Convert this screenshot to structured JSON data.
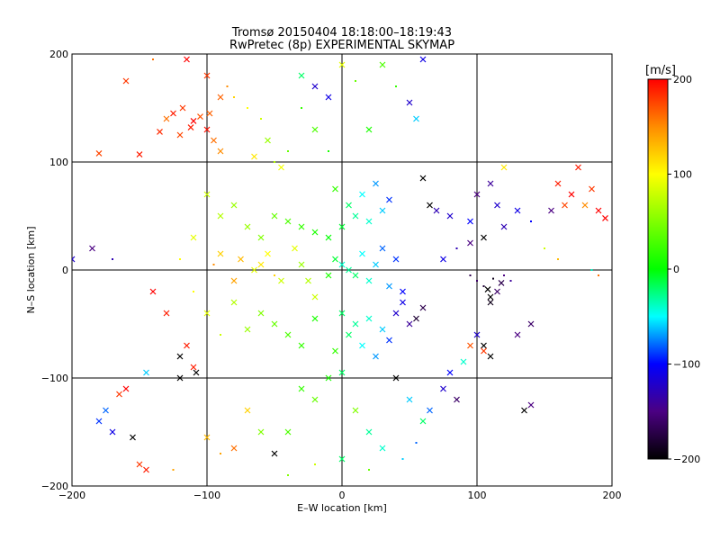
{
  "chart_data": {
    "type": "scatter",
    "title": "Tromsø 20150404 18:18:00–18:19:43",
    "subtitle": "RwPretec (8p) EXPERIMENTAL SKYMAP",
    "xlabel": "E–W location [km]",
    "ylabel": "N–S location [km]",
    "xlim": [
      -200,
      200
    ],
    "ylim": [
      -200,
      200
    ],
    "x_ticks": [
      -200,
      -100,
      0,
      100,
      200
    ],
    "y_ticks": [
      -200,
      -100,
      0,
      100,
      200
    ],
    "grid": true,
    "colorbar": {
      "unit_label": "[m/s]",
      "range": [
        -200,
        200
      ],
      "ticks": [
        200,
        100,
        0,
        -100,
        -200
      ],
      "colormap": [
        "#000000",
        "#4b0082",
        "#0000ff",
        "#00ffff",
        "#00ff00",
        "#ffff00",
        "#ff8c00",
        "#ff0000"
      ]
    },
    "markers": {
      "small": "dot",
      "large": "x"
    },
    "points": [
      [
        -130,
        140,
        160,
        "x"
      ],
      [
        -125,
        145,
        190,
        "x"
      ],
      [
        -118,
        150,
        180,
        "x"
      ],
      [
        -110,
        138,
        200,
        "x"
      ],
      [
        -105,
        142,
        170,
        "x"
      ],
      [
        -100,
        130,
        195,
        "x"
      ],
      [
        -95,
        120,
        160,
        "x"
      ],
      [
        -90,
        110,
        150,
        "x"
      ],
      [
        -135,
        128,
        185,
        "x"
      ],
      [
        -120,
        125,
        175,
        "x"
      ],
      [
        -112,
        132,
        190,
        "x"
      ],
      [
        -98,
        145,
        165,
        "x"
      ],
      [
        -80,
        160,
        120,
        "."
      ],
      [
        -70,
        150,
        100,
        "."
      ],
      [
        -60,
        140,
        80,
        "."
      ],
      [
        -55,
        120,
        60,
        "x"
      ],
      [
        -50,
        100,
        70,
        "."
      ],
      [
        -40,
        110,
        40,
        "."
      ],
      [
        -30,
        150,
        20,
        "."
      ],
      [
        -20,
        130,
        30,
        "x"
      ],
      [
        -10,
        110,
        10,
        "."
      ],
      [
        -45,
        95,
        95,
        "x"
      ],
      [
        -65,
        105,
        110,
        "x"
      ],
      [
        -150,
        107,
        190,
        "x"
      ],
      [
        -180,
        108,
        175,
        "x"
      ],
      [
        -160,
        175,
        180,
        "x"
      ],
      [
        -140,
        195,
        160,
        "."
      ],
      [
        -115,
        195,
        200,
        "x"
      ],
      [
        -100,
        180,
        180,
        "x"
      ],
      [
        -90,
        160,
        165,
        "x"
      ],
      [
        -85,
        170,
        150,
        "."
      ],
      [
        -30,
        180,
        -20,
        "x"
      ],
      [
        -20,
        170,
        -120,
        "x"
      ],
      [
        -10,
        160,
        -110,
        "x"
      ],
      [
        0,
        190,
        90,
        "x"
      ],
      [
        10,
        175,
        40,
        "."
      ],
      [
        30,
        190,
        30,
        "x"
      ],
      [
        60,
        195,
        -110,
        "x"
      ],
      [
        50,
        155,
        -120,
        "x"
      ],
      [
        40,
        170,
        20,
        "."
      ],
      [
        20,
        130,
        10,
        "x"
      ],
      [
        55,
        140,
        -60,
        "x"
      ],
      [
        -200,
        10,
        -120,
        "x"
      ],
      [
        -185,
        20,
        -150,
        "x"
      ],
      [
        -170,
        10,
        -130,
        "."
      ],
      [
        60,
        85,
        -200,
        "x"
      ],
      [
        65,
        60,
        -200,
        "x"
      ],
      [
        70,
        55,
        -130,
        "x"
      ],
      [
        80,
        50,
        -120,
        "x"
      ],
      [
        95,
        45,
        -100,
        "x"
      ],
      [
        100,
        70,
        -150,
        "x"
      ],
      [
        110,
        80,
        -140,
        "x"
      ],
      [
        115,
        60,
        -120,
        "x"
      ],
      [
        130,
        55,
        -110,
        "x"
      ],
      [
        140,
        45,
        -100,
        "."
      ],
      [
        120,
        40,
        -130,
        "x"
      ],
      [
        105,
        30,
        -200,
        "x"
      ],
      [
        95,
        25,
        -150,
        "x"
      ],
      [
        85,
        20,
        -130,
        "."
      ],
      [
        75,
        10,
        -110,
        "x"
      ],
      [
        100,
        -10,
        -160,
        "."
      ],
      [
        105,
        -15,
        -180,
        "."
      ],
      [
        110,
        -25,
        -200,
        "x"
      ],
      [
        115,
        -20,
        -160,
        "x"
      ],
      [
        120,
        -5,
        -150,
        "."
      ],
      [
        125,
        -10,
        -140,
        "."
      ],
      [
        95,
        -5,
        -170,
        "."
      ],
      [
        112,
        -8,
        -190,
        "."
      ],
      [
        108,
        -18,
        -200,
        "x"
      ],
      [
        118,
        -12,
        -170,
        "x"
      ],
      [
        130,
        -60,
        -150,
        "x"
      ],
      [
        140,
        -50,
        -160,
        "x"
      ],
      [
        135,
        -130,
        -200,
        "x"
      ],
      [
        140,
        -125,
        -150,
        "x"
      ],
      [
        105,
        -70,
        -200,
        "x"
      ],
      [
        110,
        -80,
        -200,
        "x"
      ],
      [
        100,
        -60,
        -120,
        "x"
      ],
      [
        95,
        -70,
        170,
        "x"
      ],
      [
        105,
        -75,
        180,
        "x"
      ],
      [
        110,
        -30,
        -190,
        "x"
      ],
      [
        160,
        80,
        190,
        "x"
      ],
      [
        170,
        70,
        200,
        "x"
      ],
      [
        180,
        60,
        150,
        "x"
      ],
      [
        190,
        55,
        200,
        "x"
      ],
      [
        175,
        95,
        190,
        "x"
      ],
      [
        185,
        75,
        180,
        "x"
      ],
      [
        195,
        48,
        200,
        "x"
      ],
      [
        155,
        55,
        -150,
        "x"
      ],
      [
        165,
        60,
        175,
        "x"
      ],
      [
        120,
        95,
        110,
        "x"
      ],
      [
        150,
        20,
        80,
        "."
      ],
      [
        160,
        10,
        130,
        "."
      ],
      [
        185,
        0,
        -40,
        "."
      ],
      [
        190,
        -5,
        160,
        "."
      ],
      [
        -110,
        -90,
        190,
        "x"
      ],
      [
        -108,
        -95,
        -200,
        "x"
      ],
      [
        -120,
        -80,
        -200,
        "x"
      ],
      [
        -115,
        -70,
        190,
        "x"
      ],
      [
        -130,
        -40,
        190,
        "x"
      ],
      [
        -140,
        -20,
        200,
        "x"
      ],
      [
        -160,
        -110,
        200,
        "x"
      ],
      [
        -165,
        -115,
        180,
        "x"
      ],
      [
        -145,
        -95,
        -60,
        "x"
      ],
      [
        -175,
        -130,
        -80,
        "x"
      ],
      [
        -170,
        -150,
        -110,
        "x"
      ],
      [
        -180,
        -140,
        -90,
        "x"
      ],
      [
        -155,
        -155,
        -200,
        "x"
      ],
      [
        -150,
        -180,
        180,
        "x"
      ],
      [
        -145,
        -185,
        190,
        "x"
      ],
      [
        -125,
        -185,
        140,
        "."
      ],
      [
        -120,
        -100,
        -200,
        "x"
      ],
      [
        -70,
        -130,
        120,
        "x"
      ],
      [
        -60,
        -150,
        50,
        "x"
      ],
      [
        -40,
        -150,
        30,
        "x"
      ],
      [
        -30,
        -110,
        20,
        "x"
      ],
      [
        -20,
        -120,
        40,
        "x"
      ],
      [
        -10,
        -100,
        10,
        "x"
      ],
      [
        0,
        -95,
        -20,
        "x"
      ],
      [
        10,
        -130,
        50,
        "x"
      ],
      [
        20,
        -150,
        -30,
        "x"
      ],
      [
        30,
        -165,
        -40,
        "x"
      ],
      [
        50,
        -120,
        -60,
        "x"
      ],
      [
        60,
        -140,
        -20,
        "x"
      ],
      [
        40,
        -100,
        -200,
        "x"
      ],
      [
        80,
        -95,
        -100,
        "x"
      ],
      [
        75,
        -110,
        -120,
        "x"
      ],
      [
        65,
        -130,
        -80,
        "x"
      ],
      [
        90,
        -85,
        -40,
        "x"
      ],
      [
        85,
        -120,
        -160,
        "x"
      ],
      [
        55,
        -160,
        -80,
        "."
      ],
      [
        45,
        -175,
        -60,
        "."
      ],
      [
        -50,
        -170,
        -200,
        "x"
      ],
      [
        -40,
        -190,
        50,
        "."
      ],
      [
        -20,
        -180,
        80,
        "."
      ],
      [
        0,
        -175,
        -20,
        "x"
      ],
      [
        20,
        -185,
        40,
        "."
      ],
      [
        -80,
        -165,
        160,
        "x"
      ],
      [
        -90,
        -170,
        140,
        "."
      ],
      [
        -100,
        -155,
        130,
        "x"
      ],
      [
        -55,
        15,
        100,
        "x"
      ],
      [
        -60,
        5,
        110,
        "x"
      ],
      [
        -65,
        0,
        90,
        "x"
      ],
      [
        -50,
        -5,
        120,
        "."
      ],
      [
        -45,
        -10,
        80,
        "x"
      ],
      [
        -75,
        10,
        130,
        "x"
      ],
      [
        -80,
        -10,
        140,
        "x"
      ],
      [
        -95,
        5,
        150,
        "."
      ],
      [
        -90,
        15,
        120,
        "x"
      ],
      [
        -35,
        20,
        90,
        "x"
      ],
      [
        -30,
        5,
        60,
        "x"
      ],
      [
        -25,
        -10,
        70,
        "x"
      ],
      [
        -20,
        -25,
        80,
        "x"
      ],
      [
        -70,
        40,
        60,
        "x"
      ],
      [
        -60,
        30,
        50,
        "x"
      ],
      [
        -50,
        50,
        40,
        "x"
      ],
      [
        -40,
        45,
        30,
        "x"
      ],
      [
        -30,
        40,
        20,
        "x"
      ],
      [
        -20,
        35,
        10,
        "x"
      ],
      [
        -10,
        30,
        0,
        "x"
      ],
      [
        -80,
        60,
        60,
        "x"
      ],
      [
        -90,
        50,
        70,
        "x"
      ],
      [
        -100,
        70,
        80,
        "x"
      ],
      [
        -110,
        30,
        90,
        "x"
      ],
      [
        -120,
        10,
        100,
        "."
      ],
      [
        -60,
        -40,
        50,
        "x"
      ],
      [
        -50,
        -50,
        40,
        "x"
      ],
      [
        -40,
        -60,
        30,
        "x"
      ],
      [
        -30,
        -70,
        20,
        "x"
      ],
      [
        -20,
        -45,
        10,
        "x"
      ],
      [
        -70,
        -55,
        60,
        "x"
      ],
      [
        -80,
        -30,
        70,
        "x"
      ],
      [
        -90,
        -60,
        80,
        "."
      ],
      [
        -100,
        -40,
        90,
        "x"
      ],
      [
        -110,
        -20,
        100,
        "."
      ],
      [
        0,
        5,
        -40,
        "x"
      ],
      [
        5,
        0,
        -30,
        "x"
      ],
      [
        10,
        -5,
        -20,
        "x"
      ],
      [
        -5,
        10,
        -10,
        "x"
      ],
      [
        15,
        15,
        -50,
        "x"
      ],
      [
        20,
        -10,
        -40,
        "x"
      ],
      [
        25,
        5,
        -60,
        "x"
      ],
      [
        -10,
        -5,
        10,
        "x"
      ],
      [
        30,
        20,
        -80,
        "x"
      ],
      [
        35,
        -15,
        -70,
        "x"
      ],
      [
        40,
        10,
        -90,
        "x"
      ],
      [
        45,
        -20,
        -100,
        "x"
      ],
      [
        0,
        40,
        -10,
        "x"
      ],
      [
        10,
        50,
        -30,
        "x"
      ],
      [
        20,
        45,
        -40,
        "x"
      ],
      [
        30,
        55,
        -60,
        "x"
      ],
      [
        5,
        60,
        -20,
        "x"
      ],
      [
        15,
        70,
        -50,
        "x"
      ],
      [
        -5,
        75,
        20,
        "x"
      ],
      [
        25,
        80,
        -70,
        "x"
      ],
      [
        35,
        65,
        -90,
        "x"
      ],
      [
        0,
        -40,
        -20,
        "x"
      ],
      [
        10,
        -50,
        -30,
        "x"
      ],
      [
        20,
        -45,
        -40,
        "x"
      ],
      [
        30,
        -55,
        -60,
        "x"
      ],
      [
        5,
        -60,
        -20,
        "x"
      ],
      [
        15,
        -70,
        -50,
        "x"
      ],
      [
        -5,
        -75,
        20,
        "x"
      ],
      [
        25,
        -80,
        -70,
        "x"
      ],
      [
        35,
        -65,
        -90,
        "x"
      ],
      [
        40,
        -40,
        -120,
        "x"
      ],
      [
        50,
        -50,
        -140,
        "x"
      ],
      [
        45,
        -30,
        -110,
        "x"
      ],
      [
        55,
        -45,
        -180,
        "x"
      ],
      [
        60,
        -35,
        -170,
        "x"
      ]
    ]
  }
}
